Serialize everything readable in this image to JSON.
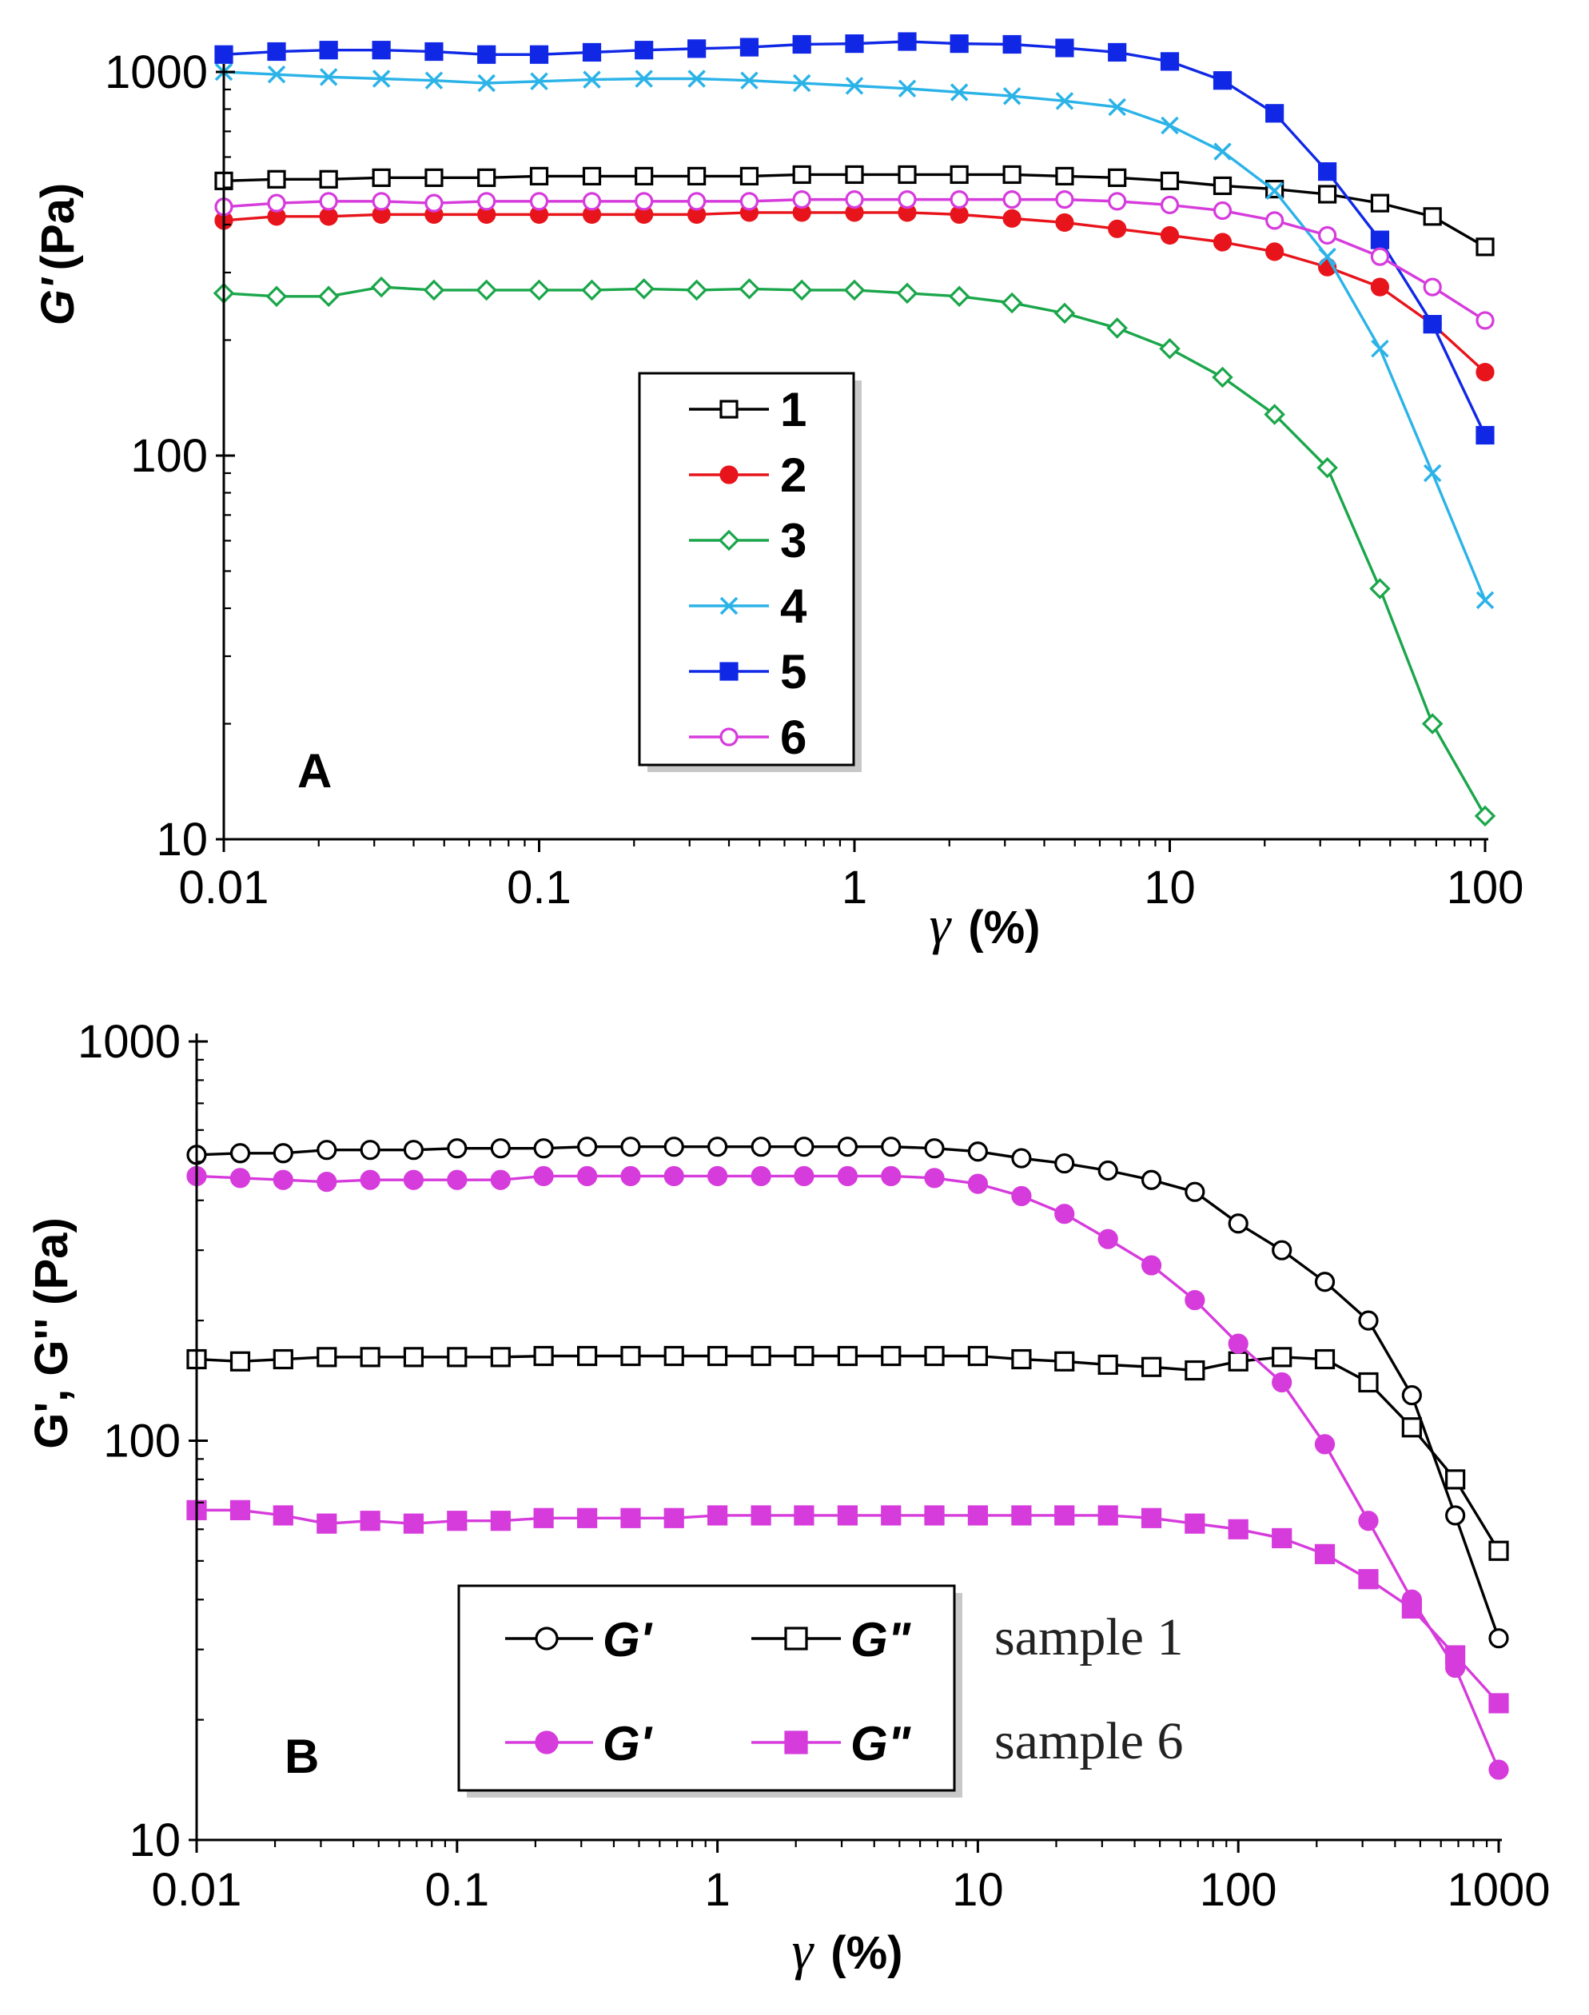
{
  "chart_data": [
    {
      "type": "line",
      "panel_label": "A",
      "xlabel_symbol": "γ",
      "xlabel_unit": "(%)",
      "ylabel_symbol": "G'",
      "ylabel_unit": "(Pa)",
      "xscale": "log",
      "yscale": "log",
      "xlim": [
        0.01,
        100
      ],
      "ylim": [
        10,
        1000
      ],
      "x_ticks": [
        "0.01",
        "0.1",
        "1",
        "10",
        "100"
      ],
      "y_ticks": [
        "10",
        "100",
        "1000"
      ],
      "legend_position": "center",
      "x": [
        0.01,
        0.0147,
        0.0215,
        0.0316,
        0.0464,
        0.0681,
        0.1,
        0.147,
        0.215,
        0.316,
        0.464,
        0.681,
        1,
        1.47,
        2.15,
        3.16,
        4.64,
        6.81,
        10,
        14.7,
        21.5,
        31.6,
        46.4,
        68.1,
        100
      ],
      "series": [
        {
          "name": "1",
          "color": "#000000",
          "marker": "open-square",
          "values": [
            520,
            525,
            525,
            530,
            530,
            530,
            535,
            535,
            535,
            535,
            535,
            540,
            540,
            540,
            540,
            540,
            535,
            530,
            520,
            505,
            495,
            480,
            455,
            420,
            350
          ]
        },
        {
          "name": "2",
          "color": "#e8141b",
          "marker": "filled-circle",
          "values": [
            410,
            420,
            420,
            425,
            425,
            425,
            425,
            425,
            425,
            425,
            430,
            430,
            430,
            430,
            425,
            415,
            405,
            390,
            375,
            360,
            340,
            310,
            275,
            220,
            165
          ]
        },
        {
          "name": "3",
          "color": "#1aa64a",
          "marker": "open-diamond",
          "values": [
            265,
            260,
            260,
            275,
            270,
            270,
            270,
            270,
            272,
            270,
            272,
            270,
            270,
            265,
            260,
            250,
            235,
            215,
            190,
            160,
            128,
            93,
            45,
            20,
            11.5
          ]
        },
        {
          "name": "4",
          "color": "#2bb3e8",
          "marker": "x",
          "values": [
            1000,
            985,
            970,
            960,
            950,
            935,
            945,
            955,
            960,
            960,
            950,
            935,
            920,
            905,
            885,
            865,
            840,
            810,
            725,
            620,
            490,
            330,
            190,
            90,
            42
          ]
        },
        {
          "name": "5",
          "color": "#1028e6",
          "marker": "filled-square",
          "values": [
            1110,
            1130,
            1140,
            1140,
            1130,
            1110,
            1110,
            1125,
            1140,
            1150,
            1160,
            1180,
            1185,
            1200,
            1185,
            1180,
            1155,
            1125,
            1065,
            950,
            780,
            550,
            365,
            220,
            113
          ]
        },
        {
          "name": "6",
          "color": "#d63bdc",
          "marker": "open-circle",
          "values": [
            445,
            455,
            460,
            460,
            455,
            460,
            460,
            460,
            460,
            460,
            460,
            465,
            465,
            465,
            465,
            465,
            465,
            460,
            450,
            435,
            410,
            375,
            330,
            275,
            225
          ]
        }
      ]
    },
    {
      "type": "line",
      "panel_label": "B",
      "xlabel_symbol": "γ",
      "xlabel_unit": "(%)",
      "ylabel": "G', G'' (Pa)",
      "xscale": "log",
      "yscale": "log",
      "xlim": [
        0.01,
        1000
      ],
      "ylim": [
        10,
        1000
      ],
      "x_ticks": [
        "0.01",
        "0.1",
        "1",
        "10",
        "100",
        "1000"
      ],
      "y_ticks": [
        "10",
        "100",
        "1000"
      ],
      "legend_position": "bottom-center",
      "legend_rows": [
        {
          "label": "sample 1",
          "entries": [
            {
              "name": "G'",
              "color": "#000000",
              "marker": "open-circle"
            },
            {
              "name": "G\"",
              "color": "#000000",
              "marker": "open-square"
            }
          ]
        },
        {
          "label": "sample 6",
          "entries": [
            {
              "name": "G'",
              "color": "#d63bdc",
              "marker": "filled-circle"
            },
            {
              "name": "G\"",
              "color": "#d63bdc",
              "marker": "filled-square"
            }
          ]
        }
      ],
      "x": [
        0.01,
        0.0147,
        0.0215,
        0.0316,
        0.0464,
        0.0681,
        0.1,
        0.147,
        0.215,
        0.316,
        0.464,
        0.681,
        1,
        1.47,
        2.15,
        3.16,
        4.64,
        6.81,
        10,
        14.7,
        21.5,
        31.6,
        46.4,
        68.1,
        100,
        147,
        215,
        316,
        464,
        681,
        1000
      ],
      "series": [
        {
          "legend": "G' sample 1",
          "color": "#000000",
          "marker": "open-circle",
          "values": [
            520,
            525,
            525,
            535,
            535,
            535,
            540,
            540,
            540,
            545,
            545,
            545,
            545,
            545,
            545,
            545,
            545,
            540,
            530,
            510,
            495,
            475,
            450,
            420,
            350,
            300,
            250,
            200,
            130,
            65,
            32
          ]
        },
        {
          "legend": "G'' sample 1",
          "color": "#000000",
          "marker": "open-square",
          "values": [
            160,
            158,
            160,
            162,
            162,
            162,
            162,
            162,
            163,
            163,
            163,
            163,
            163,
            163,
            163,
            163,
            163,
            163,
            163,
            160,
            158,
            155,
            153,
            150,
            158,
            162,
            160,
            140,
            108,
            80,
            53
          ]
        },
        {
          "legend": "G' sample 6",
          "color": "#d63bdc",
          "marker": "filled-circle",
          "values": [
            460,
            455,
            450,
            445,
            450,
            450,
            450,
            450,
            460,
            460,
            460,
            460,
            460,
            460,
            460,
            460,
            460,
            455,
            440,
            410,
            370,
            320,
            275,
            225,
            175,
            140,
            98,
            63,
            40,
            27,
            15
          ]
        },
        {
          "legend": "G'' sample 6",
          "color": "#d63bdc",
          "marker": "filled-square",
          "values": [
            67,
            67,
            65,
            62,
            63,
            62,
            63,
            63,
            64,
            64,
            64,
            64,
            65,
            65,
            65,
            65,
            65,
            65,
            65,
            65,
            65,
            65,
            64,
            62,
            60,
            57,
            52,
            45,
            38,
            29,
            22
          ]
        }
      ]
    }
  ]
}
